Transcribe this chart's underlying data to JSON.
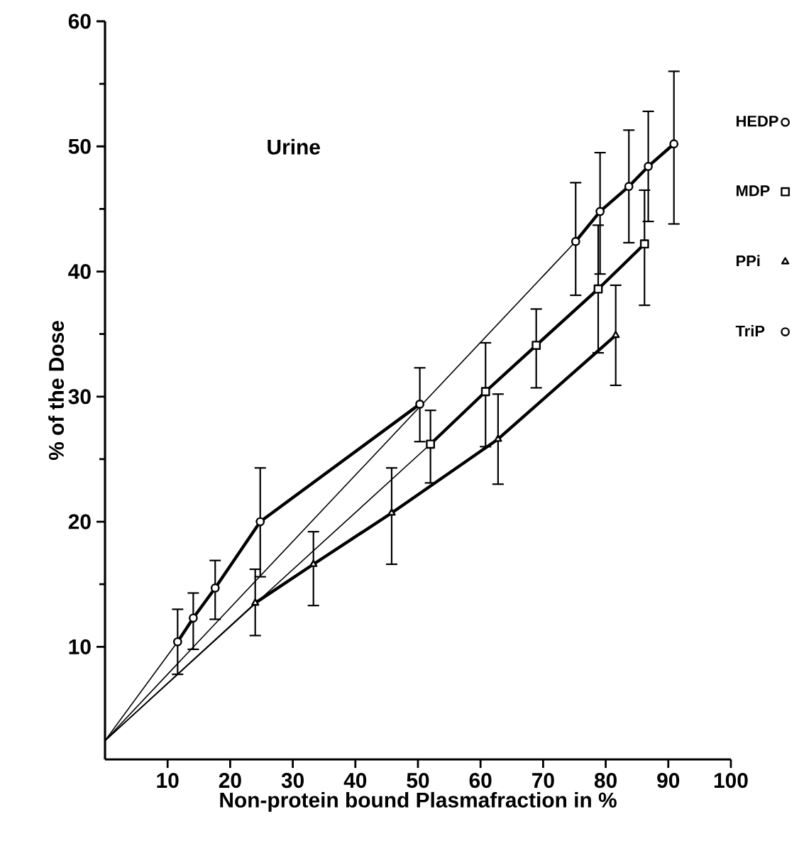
{
  "chart_data": {
    "type": "line",
    "xlabel": "Non-protein bound Plasmafraction in %",
    "ylabel": "% of the Dose",
    "annotations": [
      "Urine"
    ],
    "xlim": [
      0,
      100
    ],
    "ylim": [
      1,
      60
    ],
    "xticks": [
      10,
      20,
      30,
      40,
      50,
      60,
      70,
      80,
      90,
      100
    ],
    "yticks": [
      10,
      20,
      30,
      40,
      50,
      60
    ],
    "grid": false,
    "legend": "right",
    "line_style": "solid",
    "series": [
      {
        "name": "HEDP",
        "color": "#000000",
        "marker": "circle",
        "x": [
          75.2,
          79.1,
          83.7,
          86.8,
          90.9
        ],
        "values": [
          42.4,
          44.8,
          46.8,
          48.4,
          50.2
        ],
        "errors": [
          [
            38.1,
            47.1
          ],
          [
            39.8,
            49.5
          ],
          [
            42.3,
            51.3
          ],
          [
            44.0,
            52.8
          ],
          [
            43.8,
            56.0
          ]
        ]
      },
      {
        "name": "MDP",
        "color": "#000000",
        "marker": "square",
        "x": [
          52.0,
          60.8,
          68.9,
          78.8,
          86.2
        ],
        "values": [
          26.2,
          30.4,
          34.1,
          38.6,
          42.2
        ],
        "errors": [
          [
            23.1,
            28.9
          ],
          [
            26.0,
            34.3
          ],
          [
            30.7,
            37.0
          ],
          [
            33.5,
            43.7
          ],
          [
            37.3,
            46.5
          ]
        ]
      },
      {
        "name": "PPi",
        "color": "#000000",
        "marker": "triangle",
        "x": [
          24.0,
          33.3,
          45.8,
          62.8,
          81.6
        ],
        "values": [
          13.5,
          16.6,
          20.7,
          26.6,
          34.9
        ],
        "errors": [
          [
            10.9,
            16.2
          ],
          [
            13.3,
            19.2
          ],
          [
            16.6,
            24.3
          ],
          [
            23.0,
            30.2
          ],
          [
            30.9,
            38.9
          ]
        ]
      },
      {
        "name": "TriP",
        "color": "#000000",
        "marker": "circle",
        "x": [
          11.6,
          14.1,
          17.6,
          24.8,
          50.3
        ],
        "values": [
          10.4,
          12.3,
          14.7,
          20.0,
          29.4
        ],
        "errors": [
          [
            7.8,
            13.0
          ],
          [
            9.8,
            14.3
          ],
          [
            12.2,
            16.9
          ],
          [
            15.6,
            24.3
          ],
          [
            26.4,
            32.3
          ]
        ]
      },
      {
        "color": "#000000",
        "marker": "none",
        "x": [
          0,
          75.2
        ],
        "values": [
          2.5,
          42.4
        ]
      },
      {
        "color": "#000000",
        "marker": "none",
        "x": [
          0,
          52.0
        ],
        "values": [
          2.5,
          26.2
        ]
      },
      {
        "color": "#000000",
        "marker": "none",
        "x": [
          0,
          24.0
        ],
        "values": [
          2.5,
          13.5
        ]
      },
      {
        "color": "#000000",
        "marker": "none",
        "x": [
          0,
          11.6
        ],
        "values": [
          2.5,
          10.4
        ]
      }
    ]
  }
}
